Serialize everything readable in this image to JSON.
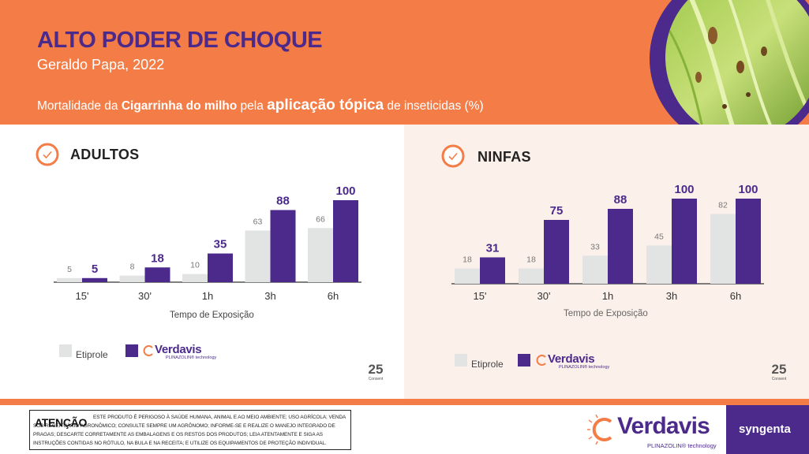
{
  "header": {
    "title": "ALTO PODER DE CHOQUE",
    "author": "Geraldo Papa, 2022",
    "subtitle_parts": [
      "Mortalidade da ",
      "Cigarrinha do milho",
      " pela ",
      "aplicação tópica",
      " de inseticidas (%)"
    ]
  },
  "colors": {
    "orange": "#f47c46",
    "purple": "#4b2a8c",
    "etiprole_gray": "#e2e4e4",
    "panel_right_bg": "#fcf0ea"
  },
  "chart_data": [
    {
      "type": "bar",
      "title": "ADULTOS",
      "categories": [
        "15'",
        "30'",
        "1h",
        "3h",
        "6h"
      ],
      "xlabel": "Tempo de Exposição",
      "ylabel": "",
      "ylim": [
        0,
        100
      ],
      "legend": "bottom-left",
      "grid": false,
      "series": [
        {
          "name": "Etiprole",
          "values": [
            5,
            8,
            10,
            63,
            66
          ],
          "color": "#e2e4e4"
        },
        {
          "name": "Verdavis",
          "values": [
            5,
            18,
            35,
            88,
            100
          ],
          "color": "#4b2a8c"
        }
      ]
    },
    {
      "type": "bar",
      "title": "NINFAS",
      "categories": [
        "15'",
        "30'",
        "1h",
        "3h",
        "6h"
      ],
      "xlabel": "Tempo de Exposição",
      "ylabel": "",
      "ylim": [
        0,
        100
      ],
      "legend": "bottom-left",
      "grid": false,
      "series": [
        {
          "name": "Etiprole",
          "values": [
            18,
            18,
            33,
            45,
            82
          ],
          "color": "#e2e4e4"
        },
        {
          "name": "Verdavis",
          "values": [
            31,
            75,
            88,
            100,
            100
          ],
          "color": "#4b2a8c"
        }
      ]
    }
  ],
  "legend": {
    "etiprole": "Etiprole",
    "verdavis_brand": "Verdavis",
    "verdavis_sub": "PLINAZOLIN® technology"
  },
  "badge": {
    "number": "25",
    "text": "Consent"
  },
  "footer": {
    "warning_title": "ATENÇÃO",
    "warning_text": "ESTE PRODUTO É PERIGOSO À SAÚDE HUMANA, ANIMAL E AO MEIO AMBIENTE; USO AGRÍCOLA; VENDA SOB RECEITUÁRIO AGRONÔMICO; CONSULTE SEMPRE UM AGRÔNOMO; INFORME-SE E REALIZE O MANEJO INTEGRADO DE PRAGAS; DESCARTE CORRETAMENTE AS EMBALAGENS E OS RESTOS DOS PRODUTOS; LEIA ATENTAMENTE E SIGA AS INSTRUÇÕES CONTIDAS NO RÓTULO, NA BULA E NA RECEITA; E UTILIZE OS EQUIPAMENTOS DE PROTEÇÃO INDIVIDUAL.",
    "brand": "Verdavis",
    "brand_sub": "PLINAZOLIN® technology",
    "company": "syngenta"
  }
}
